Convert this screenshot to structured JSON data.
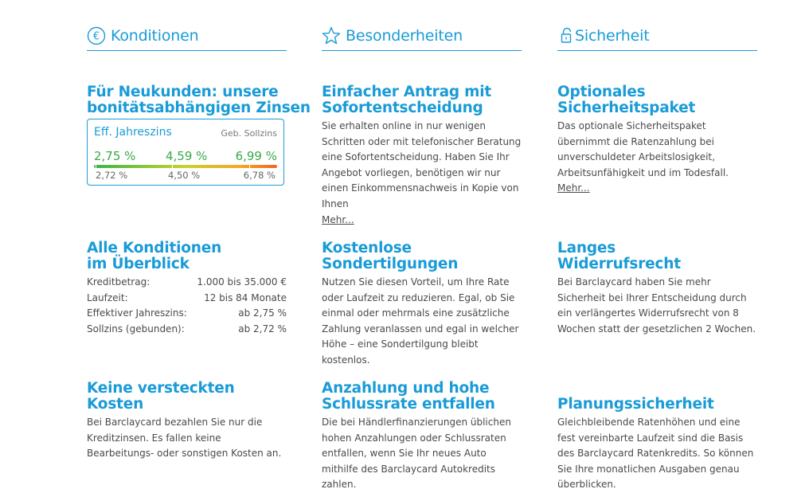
{
  "headers": {
    "konditionen": "Konditionen",
    "besonderheiten": "Besonderheiten",
    "sicherheit": "Sicherheit"
  },
  "icons": {
    "konditionen": "euro-circle-icon",
    "besonderheiten": "star-icon",
    "sicherheit": "padlock-icon"
  },
  "neukunden": {
    "title_line1": "Für Neukunden: unsere",
    "title_line2": "bonitätsabhängigen Zinsen",
    "eff_label": "Eff. Jahreszins",
    "geb_label": "Geb. Sollzins",
    "eff_rates": [
      "2,75 %",
      "4,59 %",
      "6,99 %"
    ],
    "soll_rates": [
      "2,72 %",
      "4,50 %",
      "6,78 %"
    ]
  },
  "alle_konditionen": {
    "title_line1": "Alle Konditionen",
    "title_line2": "im Überblick",
    "rows": [
      {
        "label": "Kreditbetrag:",
        "value": "1.000 bis 35.000 €"
      },
      {
        "label": "Laufzeit:",
        "value": "12 bis 84 Monate"
      },
      {
        "label": "Effektiver Jahreszins:",
        "value": "ab 2,75 %"
      },
      {
        "label": "Sollzins (gebunden):",
        "value": "ab 2,72 %"
      }
    ]
  },
  "versteckte": {
    "title_line1": "Keine versteckten",
    "title_line2": "Kosten",
    "body": "Bei Barclaycard bezahlen Sie nur die Kreditzinsen. Es fallen keine Bearbeitungs- oder sonstigen Kosten an."
  },
  "antrag": {
    "title_line1": "Einfacher Antrag mit",
    "title_line2": "Sofortentscheidung",
    "body": "Sie erhalten online in nur wenigen Schritten oder mit telefonischer Beratung eine Sofortentscheidung. Haben Sie Ihr Angebot vorliegen, benötigen wir nur einen Einkommensnachweis in Kopie von Ihnen",
    "more": "Mehr..."
  },
  "sondertilgungen": {
    "title_line1": "Kostenlose",
    "title_line2": "Sondertilgungen",
    "body": "Nutzen Sie diesen Vorteil, um Ihre Rate oder Laufzeit zu reduzieren. Egal, ob Sie einmal oder mehrmals eine zusätzliche Zahlung veranlassen und egal in welcher Höhe – eine Sondertilgung bleibt kostenlos."
  },
  "anzahlung": {
    "title_line1": "Anzahlung und hohe",
    "title_line2": "Schlussrate entfallen",
    "body": "Die bei Händlerfinanzierungen üblichen hohen Anzahlungen oder Schlussraten entfallen, wenn Sie Ihr neues Auto mithilfe des Barclaycard Autokredits zahlen."
  },
  "sicherheitspaket": {
    "title_line1": "Optionales",
    "title_line2": "Sicherheitspaket",
    "body": "Das optionale Sicherheitspaket übernimmt die Ratenzahlung bei unverschuldeter Arbeitslosigkeit, Arbeitsunfähigkeit und im Todesfall.",
    "more": "Mehr..."
  },
  "widerruf": {
    "title_line1": "Langes",
    "title_line2": "Widerrufsrecht",
    "body": "Bei Barclaycard haben Sie mehr Sicherheit bei Ihrer Entscheidung durch ein verlängertes Widerrufsrecht von 8 Wochen statt der gesetzlichen 2 Wochen."
  },
  "planung": {
    "title": "Planungssicherheit",
    "body": "Gleichbleibende Ratenhöhen und eine fest vereinbarte Laufzeit sind die Basis des Barclaycard Ratenkredits. So können Sie Ihre monatlichen Ausgaben genau überblicken."
  },
  "colors": {
    "accent": "#1a9bd7",
    "text": "#4a4a4a",
    "rate_green": "#3aa84a"
  }
}
